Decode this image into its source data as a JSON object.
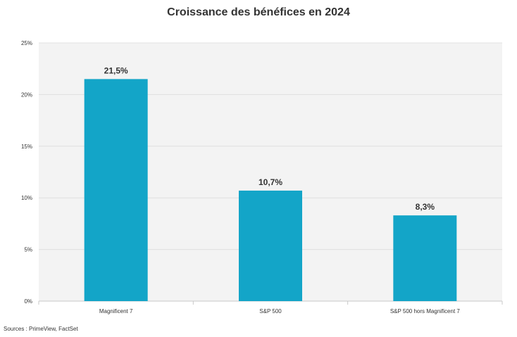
{
  "chart_data": {
    "type": "bar",
    "title": "Croissance des bénéfices en 2024",
    "categories": [
      "Magnificent 7",
      "S&P 500",
      "S&P 500 hors Magnificent 7"
    ],
    "values": [
      21.5,
      10.7,
      8.3
    ],
    "value_labels": [
      "21,5%",
      "10,7%",
      "8,3%"
    ],
    "ylim": [
      0,
      25
    ],
    "yticks": [
      0,
      5,
      10,
      15,
      20,
      25
    ],
    "ytick_labels": [
      "0%",
      "5%",
      "10%",
      "15%",
      "20%",
      "25%"
    ],
    "grid": true,
    "bar_color": "#13a5c8",
    "plot_background": "#f3f3f3",
    "source": "Sources : PrimeView, FactSet"
  }
}
